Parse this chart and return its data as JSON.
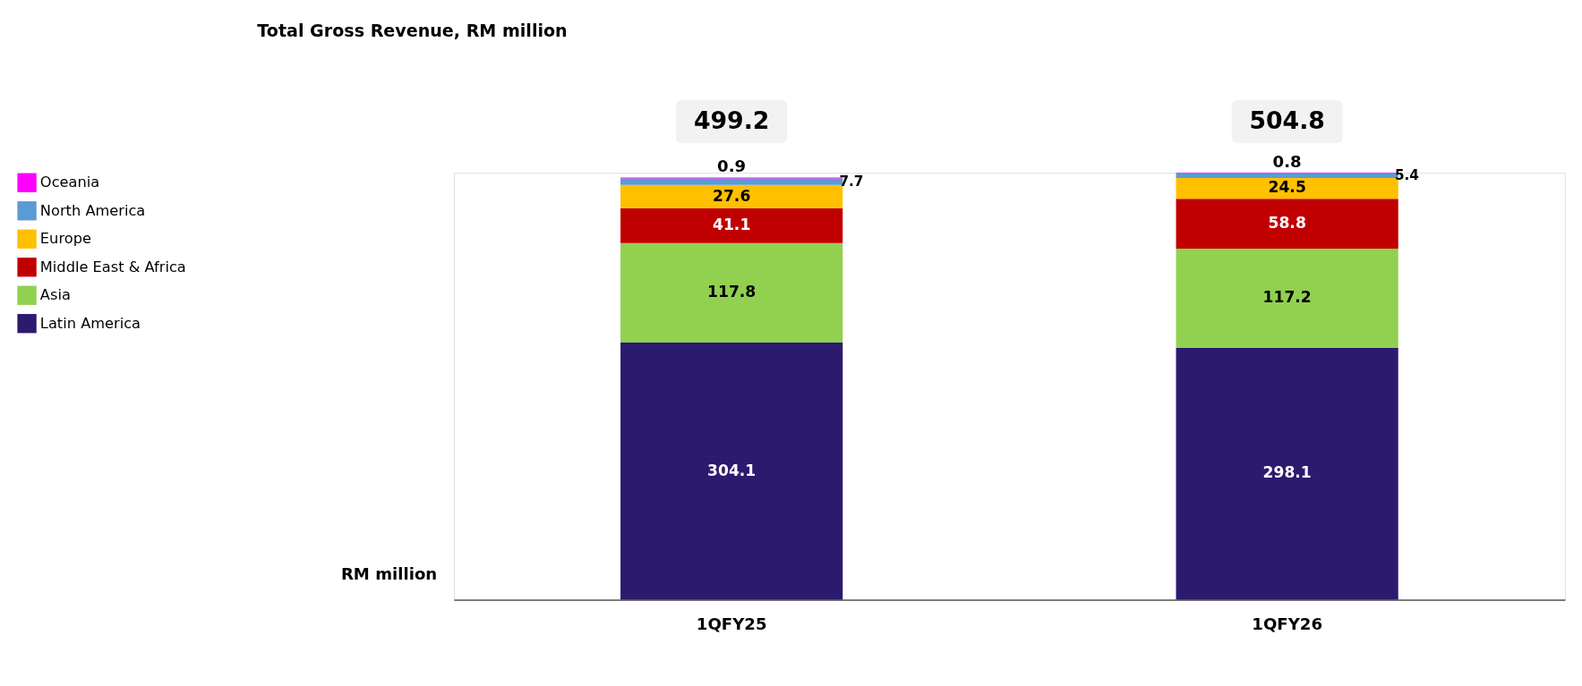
{
  "chart_data": {
    "type": "bar",
    "title": "Total Gross Revenue, RM million",
    "ylabel": "RM million",
    "categories": [
      "1QFY25",
      "1QFY26"
    ],
    "stacked": true,
    "data_labels": true,
    "legend": "left",
    "totals": [
      "499.2",
      "504.8"
    ],
    "series": [
      {
        "name": "Latin America",
        "color": "#2c1a6e",
        "values": [
          304.1,
          298.1
        ]
      },
      {
        "name": "Asia",
        "color": "#92d050",
        "values": [
          117.8,
          117.2
        ]
      },
      {
        "name": "Middle East & Africa",
        "color": "#c00000",
        "values": [
          41.1,
          58.8
        ]
      },
      {
        "name": "Europe",
        "color": "#ffc000",
        "values": [
          27.6,
          24.5
        ]
      },
      {
        "name": "North America",
        "color": "#5b9bd5",
        "values": [
          7.7,
          5.4
        ]
      },
      {
        "name": "Oceania",
        "color": "#ff00ff",
        "values": [
          0.9,
          0.8
        ]
      }
    ]
  }
}
